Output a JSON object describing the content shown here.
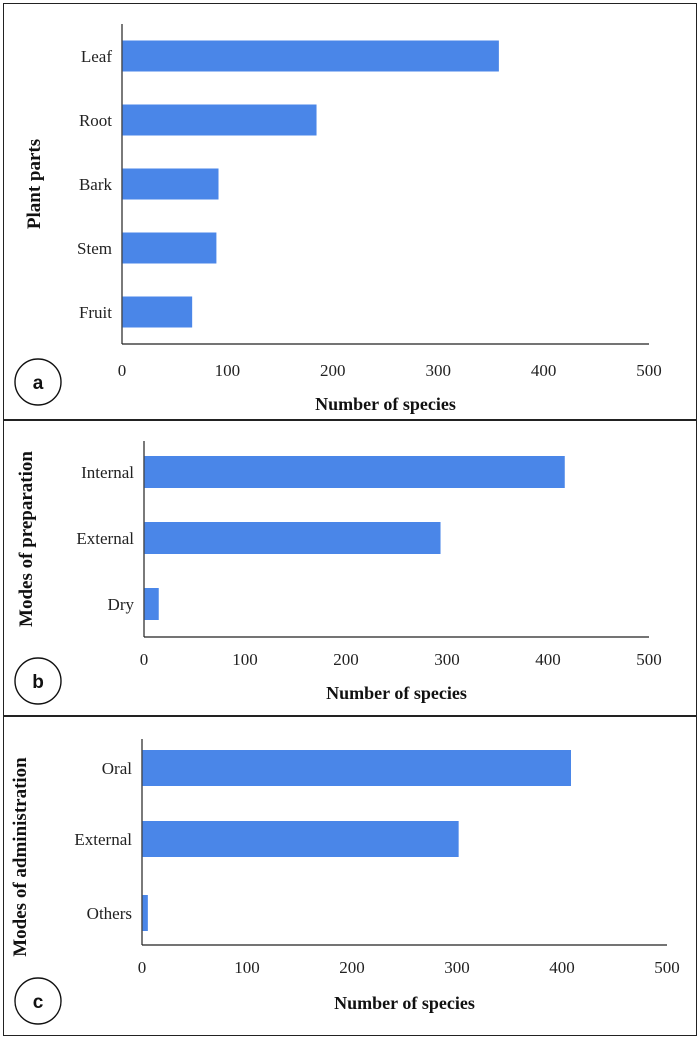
{
  "chart_data": [
    {
      "type": "bar",
      "orientation": "horizontal",
      "panel_label": "a",
      "categories": [
        "Leaf",
        "Root",
        "Bark",
        "Stem",
        "Fruit"
      ],
      "values": [
        357,
        184,
        91,
        89,
        66
      ],
      "xlabel": "Number of species",
      "ylabel": "Plant parts",
      "xlim": [
        0,
        500
      ],
      "xticks": [
        "0",
        "100",
        "200",
        "300",
        "400",
        "500"
      ],
      "color": "#4a86e8"
    },
    {
      "type": "bar",
      "orientation": "horizontal",
      "panel_label": "b",
      "categories": [
        "Internal",
        "External",
        "Dry"
      ],
      "values": [
        416,
        293,
        14
      ],
      "xlabel": "Number of species",
      "ylabel": "Modes of preparation",
      "xlim": [
        0,
        500
      ],
      "xticks": [
        "0",
        "100",
        "200",
        "300",
        "400",
        "500"
      ],
      "color": "#4a86e8"
    },
    {
      "type": "bar",
      "orientation": "horizontal",
      "panel_label": "c",
      "categories": [
        "Oral",
        "External",
        "Others"
      ],
      "values": [
        408,
        301,
        5
      ],
      "xlabel": "Number of species",
      "ylabel": "Modes of administration",
      "xlim": [
        0,
        500
      ],
      "xticks": [
        "0",
        "100",
        "200",
        "300",
        "400",
        "500"
      ],
      "color": "#4a86e8"
    }
  ]
}
